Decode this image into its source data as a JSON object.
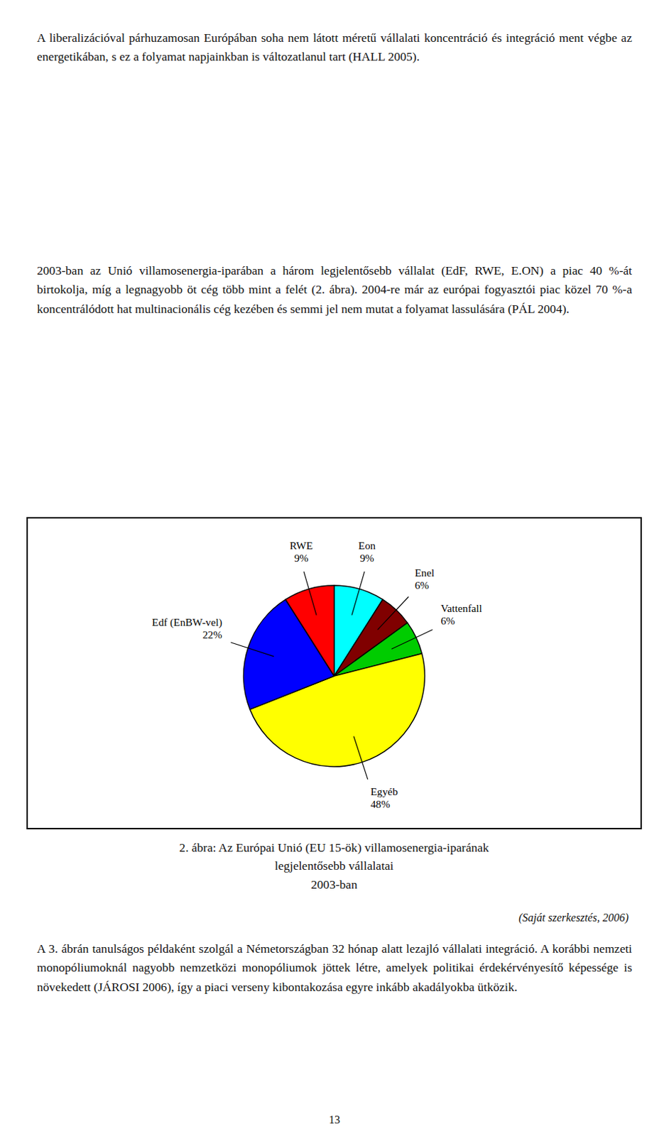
{
  "para1": "A liberalizációval párhuzamosan Európában soha nem látott méretű vállalati koncentráció és integráció ment végbe az energetikában, s ez a folyamat napjainkban is változatlanul tart (HALL 2005).",
  "para2": "2003-ban az Unió villamosenergia-iparában a három legjelentősebb vállalat (EdF, RWE, E.ON) a piac 40 %-át birtokolja, míg a legnagyobb öt cég több mint a felét (2. ábra). 2004-re már az európai fogyasztói piac közel 70 %-a koncentrálódott hat multinacionális cég kezében és semmi jel nem mutat a folyamat lassulására (PÁL 2004).",
  "para3": "A 3. ábrán tanulságos példaként szolgál a Németországban 32 hónap alatt lezajló vállalati integráció. A korábbi nemzeti monopóliumoknál nagyobb nemzetközi monopóliumok jöttek létre, amelyek politikai érdekérvényesítő képessége is növekedett (JÁROSI 2006), így a piaci verseny kibontakozása egyre inkább akadályokba ütközik.",
  "page_number": "13",
  "chart_data": {
    "type": "pie",
    "title": [
      "2. ábra: Az Európai Unió (EU 15-ök) villamosenergia-iparának",
      "legjelentősebb vállalatai",
      "2003-ban"
    ],
    "subtitle": "(Saját szerkesztés, 2006)",
    "categories": [
      "Eon",
      "Enel",
      "Vattenfall",
      "Egyéb",
      "Edf (EnBW-vel)",
      "RWE"
    ],
    "values": [
      9,
      6,
      6,
      48,
      22,
      9
    ],
    "value_labels": [
      "9%",
      "6%",
      "6%",
      "48%",
      "22%",
      "9%"
    ],
    "colors": [
      "#00FFFF",
      "#800000",
      "#00CC00",
      "#FFFF00",
      "#0000FF",
      "#FF0000"
    ],
    "data_labels": true
  }
}
